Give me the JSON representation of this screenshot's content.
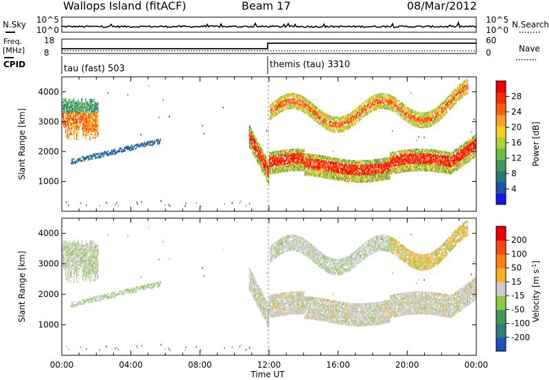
{
  "header": {
    "site": "Wallops Island (fitACF)",
    "beam": "Beam 17",
    "date": "08/Mar/2012"
  },
  "aux": {
    "nsky_label": "N.Sky",
    "nsearch_label": "N.Search",
    "noise_ticks": [
      "10^5",
      "10^0"
    ],
    "freq_label": [
      "Freq.",
      "[MHz]"
    ],
    "freq_ticks": [
      "18",
      "8"
    ],
    "nave_label": "Nave",
    "nave_ticks": [
      "60",
      "0"
    ],
    "cpid_label": "CPID",
    "cpid_programs": [
      {
        "name": "tau (fast) 503",
        "start_hour": 0
      },
      {
        "name": "themis (tau) 3310",
        "start_hour": 12
      }
    ]
  },
  "chart_data": [
    {
      "type": "heatmap",
      "title": "Power",
      "ylabel": "Slant Range [km]",
      "xlabel": "",
      "ylim": [
        0,
        4500
      ],
      "xlim_hours": [
        0,
        24
      ],
      "y_ticks": [
        1000,
        2000,
        3000,
        4000
      ],
      "colorbar": {
        "label": "Power [dB]",
        "ticks": [
          "4",
          "8",
          "12",
          "16",
          "20",
          "24",
          "28"
        ],
        "colors": [
          "#1414ee",
          "#2050b0",
          "#227a78",
          "#3f9a56",
          "#6fbb4a",
          "#b2d038",
          "#ffd020",
          "#ffa020",
          "#ff6010",
          "#ff2a00",
          "#ee0000"
        ]
      },
      "features": [
        {
          "desc": "early patch",
          "t0": 0.0,
          "t1": 2.1,
          "r0": 2400,
          "r1": 3900,
          "color": "#ff7a10"
        },
        {
          "desc": "rising band",
          "t0": 0.5,
          "t1": 5.7,
          "r0": 1600,
          "r1": 2300,
          "color": "#2050b0"
        },
        {
          "desc": "main band",
          "t0": 10.7,
          "t1": 24.0,
          "r0": 1200,
          "r1": 2400,
          "color": "#ff3a00"
        },
        {
          "desc": "upper wave",
          "t0": 12.0,
          "t1": 23.5,
          "r0": 2700,
          "r1": 4300,
          "color": "#ff9020"
        }
      ]
    },
    {
      "type": "heatmap",
      "title": "Velocity",
      "xlabel": "Time UT",
      "ylabel": "Slant Range [km]",
      "ylim": [
        0,
        4500
      ],
      "xlim_hours": [
        0,
        24
      ],
      "y_ticks": [
        1000,
        2000,
        3000,
        4000
      ],
      "x_ticks": [
        "00:00",
        "04:00",
        "08:00",
        "12:00",
        "16:00",
        "20:00",
        "00:00"
      ],
      "colorbar": {
        "label": "Velocity [m s^-1]",
        "ticks": [
          "200",
          "100",
          "50",
          "15",
          "-15",
          "-50",
          "-100",
          "-200"
        ],
        "colors": [
          "#2050c0",
          "#2e7f7a",
          "#3d9b55",
          "#88cc44",
          "#cccccc",
          "#ffb020",
          "#ff8010",
          "#ff4810",
          "#ee0000"
        ]
      }
    }
  ]
}
